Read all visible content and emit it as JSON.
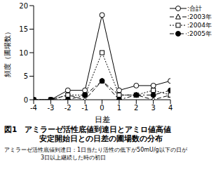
{
  "chart_data": {
    "type": "line",
    "title": [
      "図1　アミラーゼ活性底値到達日とアミロ値高値",
      "安定開始日との日差の圃場数の分布"
    ],
    "annotations": [
      "アミラーゼ活性底値到達日：1日当たり活性の低下が50mU/g以下の日が",
      "3日以上継続した時の初日"
    ],
    "x_label": "日差",
    "y_label": "頻度（圃場数）",
    "x": [
      -4,
      -3,
      -2,
      -1,
      0,
      1,
      2,
      3,
      4
    ],
    "xlim": [
      -4,
      4
    ],
    "xticks": [
      -4,
      -3,
      -2,
      -1,
      0,
      1,
      2,
      3,
      4
    ],
    "ylim": [
      0,
      20
    ],
    "yticks": [
      0,
      5,
      10,
      15,
      20
    ],
    "grid": false,
    "legend": "upper right",
    "series": [
      {
        "name": ":合計",
        "color": "#000000",
        "marker": "circle-open",
        "line_style": "solid",
        "values": [
          0,
          0,
          2,
          2,
          18,
          2,
          3,
          3,
          4
        ]
      },
      {
        "name": ":2003年",
        "color": "#000000",
        "marker": "triangle-open",
        "line_style": "dashed",
        "values": [
          0,
          0,
          1,
          0,
          4,
          1,
          1,
          0,
          1
        ]
      },
      {
        "name": ":2004年",
        "color": "#000000",
        "marker": "square-open",
        "line_style": "dotted",
        "values": [
          0,
          0,
          1,
          1,
          10,
          1,
          1,
          2,
          1
        ]
      },
      {
        "name": ":2005年",
        "color": "#000000",
        "marker": "circle-filled",
        "line_style": "dashdot",
        "values": [
          0,
          0,
          0,
          1,
          4,
          0,
          1,
          1,
          2
        ]
      }
    ]
  }
}
